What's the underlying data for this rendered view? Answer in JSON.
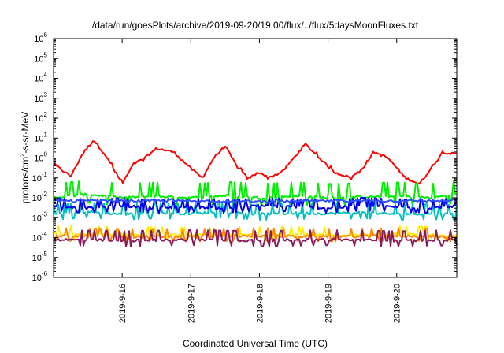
{
  "chart_data": {
    "type": "line",
    "title": "/data/run/goesPlots/archive/2019-09-20/19:00/flux/../flux/5daysMoonFluxes.txt",
    "xlabel": "Coordinated Universal Time (UTC)",
    "ylabel": "protons/cm2-s-sr-MeV",
    "ylabel_parts": {
      "pre": "protons/cm",
      "sup": "2",
      "post": "-s-sr-MeV"
    },
    "y_scale": "log",
    "ylim": [
      1e-06,
      1000000.0
    ],
    "xlim": [
      "2019-09-15 00:00",
      "2019-09-20 21:00"
    ],
    "grid": false,
    "legend": "none",
    "y_ticks": [
      {
        "base": "10",
        "exp": "-6"
      },
      {
        "base": "10",
        "exp": "-5"
      },
      {
        "base": "10",
        "exp": "-4"
      },
      {
        "base": "10",
        "exp": "-3"
      },
      {
        "base": "10",
        "exp": "-2"
      },
      {
        "base": "10",
        "exp": "-1"
      },
      {
        "base": "10",
        "exp": "0"
      },
      {
        "base": "10",
        "exp": "1"
      },
      {
        "base": "10",
        "exp": "2"
      },
      {
        "base": "10",
        "exp": "3"
      },
      {
        "base": "10",
        "exp": "4"
      },
      {
        "base": "10",
        "exp": "5"
      },
      {
        "base": "10",
        "exp": "6"
      }
    ],
    "x_ticks": [
      "2019-9-16",
      "2019-9-17",
      "2019-9-18",
      "2019-9-19",
      "2019-9-20"
    ],
    "x_tick_dates": [
      "2019-09-16",
      "2019-09-17",
      "2019-09-18",
      "2019-09-19",
      "2019-09-20"
    ],
    "series": [
      {
        "color": "#ff0000",
        "x": [
          "2019-09-15 00:00",
          "2019-09-15 06:00",
          "2019-09-15 10:00",
          "2019-09-15 14:00",
          "2019-09-15 18:00",
          "2019-09-16 00:00",
          "2019-09-16 04:00",
          "2019-09-16 08:00",
          "2019-09-16 12:00",
          "2019-09-16 18:00",
          "2019-09-17 00:00",
          "2019-09-17 04:00",
          "2019-09-17 08:00",
          "2019-09-17 12:00",
          "2019-09-17 16:00",
          "2019-09-17 20:00",
          "2019-09-18 00:00",
          "2019-09-18 03:00",
          "2019-09-18 08:00",
          "2019-09-18 12:00",
          "2019-09-18 16:00",
          "2019-09-18 21:00",
          "2019-09-19 02:00",
          "2019-09-19 08:00",
          "2019-09-19 12:00",
          "2019-09-19 16:00",
          "2019-09-19 21:00",
          "2019-09-20 03:00",
          "2019-09-20 08:00",
          "2019-09-20 12:00",
          "2019-09-20 16:00",
          "2019-09-20 21:00"
        ],
        "values": [
          0.5,
          0.12,
          1.5,
          8,
          1.5,
          0.05,
          0.5,
          1,
          3,
          2,
          0.3,
          0.1,
          1,
          4,
          0.4,
          0.09,
          0.2,
          0.1,
          0.2,
          1,
          5,
          1,
          0.2,
          0.1,
          0.3,
          2,
          1,
          0.1,
          0.05,
          0.3,
          2,
          1.5
        ]
      },
      {
        "color": "#00ee00",
        "x": [
          "2019-09-15 00:00",
          "2019-09-15 12:00",
          "2019-09-16 00:00",
          "2019-09-16 12:00",
          "2019-09-17 00:00",
          "2019-09-17 12:00",
          "2019-09-18 00:00",
          "2019-09-18 12:00",
          "2019-09-19 00:00",
          "2019-09-19 12:00",
          "2019-09-20 00:00",
          "2019-09-20 12:00",
          "2019-09-20 21:00"
        ],
        "values": [
          0.01,
          0.015,
          0.01,
          0.012,
          0.01,
          0.013,
          0.01,
          0.012,
          0.01,
          0.011,
          0.012,
          0.01,
          0.015
        ]
      },
      {
        "color": "#00c0c0",
        "x": [
          "2019-09-15 00:00",
          "2019-09-15 12:00",
          "2019-09-16 00:00",
          "2019-09-16 12:00",
          "2019-09-17 00:00",
          "2019-09-17 12:00",
          "2019-09-18 00:00",
          "2019-09-18 12:00",
          "2019-09-19 00:00",
          "2019-09-19 12:00",
          "2019-09-20 00:00",
          "2019-09-20 12:00",
          "2019-09-20 21:00"
        ],
        "values": [
          0.0015,
          0.002,
          0.0015,
          0.0018,
          0.0016,
          0.002,
          0.0015,
          0.0017,
          0.0016,
          0.0018,
          0.0015,
          0.0016,
          0.0015
        ]
      },
      {
        "color": "#0000ee",
        "x": [
          "2019-09-15 00:00",
          "2019-09-15 12:00",
          "2019-09-16 00:00",
          "2019-09-16 12:00",
          "2019-09-17 00:00",
          "2019-09-17 12:00",
          "2019-09-18 00:00",
          "2019-09-18 12:00",
          "2019-09-19 00:00",
          "2019-09-19 12:00",
          "2019-09-20 00:00",
          "2019-09-20 12:00",
          "2019-09-20 21:00"
        ],
        "values": [
          0.004,
          0.003,
          0.004,
          0.003,
          0.0035,
          0.003,
          0.004,
          0.0035,
          0.003,
          0.004,
          0.0035,
          0.003,
          0.004
        ]
      },
      {
        "color": "#3050ff",
        "x": [
          "2019-09-15 00:00",
          "2019-09-16 00:00",
          "2019-09-17 00:00",
          "2019-09-18 00:00",
          "2019-09-19 00:00",
          "2019-09-20 00:00",
          "2019-09-20 21:00"
        ],
        "values": [
          0.007,
          0.007,
          0.007,
          0.0065,
          0.007,
          0.007,
          0.007
        ]
      },
      {
        "color": "#ffee00",
        "x": [
          "2019-09-15 00:00",
          "2019-09-16 00:00",
          "2019-09-17 00:00",
          "2019-09-18 00:00",
          "2019-09-19 00:00",
          "2019-09-20 00:00",
          "2019-09-20 21:00"
        ],
        "values": [
          0.00015,
          0.00014,
          0.00013,
          0.00014,
          0.00013,
          0.00015,
          0.00013
        ]
      },
      {
        "color": "#ff8800",
        "x": [
          "2019-09-15 00:00",
          "2019-09-16 00:00",
          "2019-09-17 00:00",
          "2019-09-18 00:00",
          "2019-09-19 00:00",
          "2019-09-20 00:00",
          "2019-09-20 21:00"
        ],
        "values": [
          0.00012,
          0.00011,
          0.00011,
          0.00012,
          0.00011,
          0.00012,
          0.00011
        ]
      },
      {
        "color": "#8b1a5a",
        "x": [
          "2019-09-15 00:00",
          "2019-09-16 00:00",
          "2019-09-17 00:00",
          "2019-09-18 00:00",
          "2019-09-19 00:00",
          "2019-09-20 00:00",
          "2019-09-20 21:00"
        ],
        "values": [
          8e-05,
          7e-05,
          8e-05,
          7e-05,
          8e-05,
          7e-05,
          8e-05
        ]
      }
    ]
  }
}
